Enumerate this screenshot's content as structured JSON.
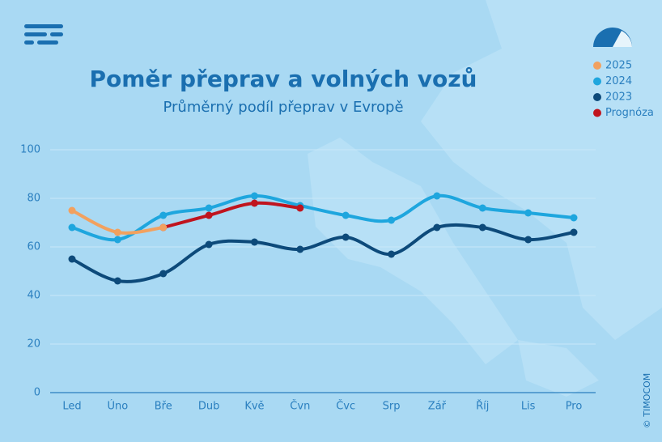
{
  "chart_data": {
    "type": "line",
    "title": "Poměr přeprav a volných vozů",
    "subtitle": "Průměrný podíl přeprav v Evropě",
    "copyright": "© TIMOCOM",
    "categories": [
      "Led",
      "Úno",
      "Bře",
      "Dub",
      "Kvě",
      "Čvn",
      "Čvc",
      "Srp",
      "Zář",
      "Říj",
      "Lis",
      "Pro"
    ],
    "legend": "top-right",
    "series": [
      {
        "name": "2025",
        "color": "#f2a15f",
        "values": [
          75,
          66,
          68,
          null,
          null,
          null,
          null,
          null,
          null,
          null,
          null,
          null
        ]
      },
      {
        "name": "2024",
        "color": "#1ea6de",
        "values": [
          68,
          63,
          73,
          76,
          81,
          77,
          73,
          71,
          81,
          76,
          74,
          72
        ]
      },
      {
        "name": "2023",
        "color": "#0d4a7a",
        "values": [
          55,
          46,
          49,
          61,
          62,
          59,
          64,
          57,
          68,
          68,
          63,
          66
        ]
      },
      {
        "name": "Prognóza",
        "color": "#c0141e",
        "values": [
          null,
          null,
          68,
          73,
          78,
          76,
          null,
          null,
          null,
          null,
          null,
          null
        ]
      }
    ],
    "ylim": [
      0,
      100
    ],
    "yticks": [
      0,
      20,
      40,
      60,
      80,
      100
    ],
    "grid": true
  }
}
